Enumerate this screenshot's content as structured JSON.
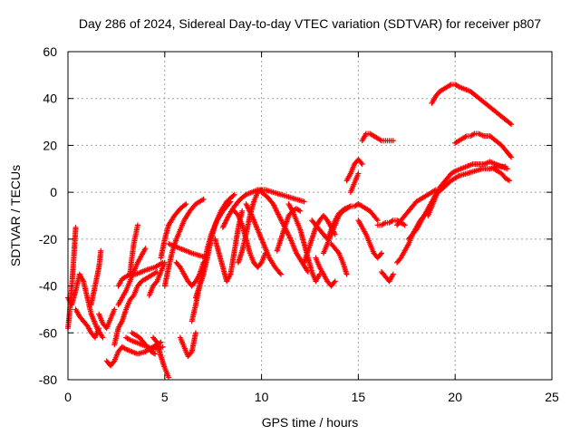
{
  "chart_data": {
    "type": "scatter",
    "title": "Day 286 of 2024, Sidereal Day-to-day VTEC variation (SDTVAR) for receiver p807",
    "xlabel": "GPS time / hours",
    "ylabel": "SDTVAR / TECUs",
    "xlim": [
      0,
      25
    ],
    "ylim": [
      -80,
      60
    ],
    "xticks": [
      "0",
      "5",
      "10",
      "15",
      "20",
      "25"
    ],
    "yticks": [
      "-80",
      "-60",
      "-40",
      "-20",
      "0",
      "20",
      "40",
      "60"
    ],
    "grid": true,
    "marker": "plus",
    "color": "#ff0000",
    "series": [
      {
        "x": [
          0.0,
          0.2,
          0.4,
          0.6,
          0.8,
          1.0,
          1.2,
          1.5,
          1.8
        ],
        "y": [
          -45,
          -48,
          -42,
          -35,
          -38,
          -45,
          -52,
          -58,
          -62
        ]
      },
      {
        "x": [
          0.0,
          0.1,
          0.2,
          0.3,
          0.4
        ],
        "y": [
          -58,
          -50,
          -40,
          -28,
          -15
        ]
      },
      {
        "x": [
          0.4,
          0.6,
          0.8,
          1.0,
          1.2,
          1.4,
          1.6
        ],
        "y": [
          -50,
          -53,
          -55,
          -57,
          -60,
          -62,
          -58
        ]
      },
      {
        "x": [
          1.2,
          1.4,
          1.6,
          1.7
        ],
        "y": [
          -48,
          -40,
          -32,
          -25
        ]
      },
      {
        "x": [
          1.6,
          1.8,
          2.0,
          2.2,
          2.4
        ],
        "y": [
          -52,
          -56,
          -58,
          -54,
          -50
        ]
      },
      {
        "x": [
          2.0,
          2.2,
          2.4,
          2.6,
          2.8,
          3.0,
          3.3,
          3.6,
          4.0,
          4.4,
          4.8
        ],
        "y": [
          -72,
          -74,
          -72,
          -68,
          -66,
          -67,
          -68,
          -69,
          -68,
          -66,
          -64
        ]
      },
      {
        "x": [
          2.4,
          2.6,
          2.8,
          3.0,
          3.2,
          3.4,
          3.6,
          3.8,
          4.2,
          4.6
        ],
        "y": [
          -65,
          -58,
          -55,
          -50,
          -46,
          -44,
          -40,
          -38,
          -36,
          -34
        ]
      },
      {
        "x": [
          2.6,
          2.8,
          3.0,
          3.2,
          3.5,
          3.8,
          4.1,
          4.5,
          4.9
        ],
        "y": [
          -40,
          -37,
          -36,
          -35,
          -35,
          -34,
          -33,
          -32,
          -30
        ]
      },
      {
        "x": [
          2.6,
          2.8,
          3.0,
          3.2,
          3.4,
          3.6,
          3.8,
          4.0
        ],
        "y": [
          -48,
          -45,
          -42,
          -38,
          -34,
          -30,
          -27,
          -24
        ]
      },
      {
        "x": [
          3.0,
          3.2,
          3.5,
          3.8,
          4.1,
          4.5,
          4.9
        ],
        "y": [
          -62,
          -63,
          -64,
          -65,
          -66,
          -67,
          -66
        ]
      },
      {
        "x": [
          3.3,
          3.5,
          3.7,
          3.9,
          4.1,
          4.3,
          4.5
        ],
        "y": [
          -60,
          -61,
          -62,
          -64,
          -66,
          -68,
          -69
        ]
      },
      {
        "x": [
          3.2,
          3.3,
          3.4,
          3.5,
          3.6
        ],
        "y": [
          -35,
          -28,
          -22,
          -18,
          -14
        ]
      },
      {
        "x": [
          4.4,
          4.6,
          4.8,
          5.0,
          5.2
        ],
        "y": [
          -62,
          -64,
          -70,
          -75,
          -79
        ]
      },
      {
        "x": [
          4.2,
          4.4,
          4.6,
          4.8,
          5.0
        ],
        "y": [
          -44,
          -40,
          -38,
          -34,
          -30
        ]
      },
      {
        "x": [
          4.8,
          5.0,
          5.2,
          5.5,
          5.8,
          6.1
        ],
        "y": [
          -28,
          -20,
          -14,
          -10,
          -7,
          -5
        ]
      },
      {
        "x": [
          5.0,
          5.2,
          5.4,
          5.6,
          5.8,
          6.0,
          6.3,
          6.6,
          7.0
        ],
        "y": [
          -40,
          -32,
          -25,
          -20,
          -16,
          -12,
          -8,
          -5,
          -3
        ]
      },
      {
        "x": [
          5.2,
          5.5,
          5.8,
          6.1,
          6.4,
          6.8,
          7.2
        ],
        "y": [
          -22,
          -23,
          -24,
          -25,
          -26,
          -27,
          -28
        ]
      },
      {
        "x": [
          5.6,
          5.8,
          6.0,
          6.2,
          6.4,
          6.6,
          6.8,
          7.0
        ],
        "y": [
          -30,
          -32,
          -35,
          -38,
          -40,
          -38,
          -35,
          -30
        ]
      },
      {
        "x": [
          5.8,
          6.0,
          6.2,
          6.4,
          6.6
        ],
        "y": [
          -62,
          -66,
          -70,
          -68,
          -60
        ]
      },
      {
        "x": [
          6.4,
          6.6,
          6.8,
          7.0,
          7.2,
          7.4,
          7.7,
          8.0,
          8.4
        ],
        "y": [
          -55,
          -48,
          -40,
          -32,
          -24,
          -18,
          -12,
          -8,
          -4
        ]
      },
      {
        "x": [
          6.6,
          6.8,
          7.0,
          7.2,
          7.4,
          7.6,
          7.9,
          8.2,
          8.6
        ],
        "y": [
          -45,
          -40,
          -35,
          -28,
          -20,
          -14,
          -8,
          -4,
          -1
        ]
      },
      {
        "x": [
          7.6,
          7.8,
          8.0,
          8.2,
          8.4,
          8.6,
          8.8,
          9.0
        ],
        "y": [
          -20,
          -26,
          -32,
          -38,
          -35,
          -25,
          -15,
          -8
        ]
      },
      {
        "x": [
          8.0,
          8.3,
          8.6,
          8.9,
          9.2,
          9.5,
          9.8,
          10.2,
          10.6,
          11.0,
          11.4,
          11.8,
          12.2
        ],
        "y": [
          -15,
          -10,
          -6,
          -3,
          -1,
          0,
          1,
          1,
          0,
          -1,
          -2,
          -3,
          -4
        ]
      },
      {
        "x": [
          8.6,
          8.8,
          9.0,
          9.2,
          9.4,
          9.6,
          9.8,
          10.0,
          10.2
        ],
        "y": [
          -8,
          -10,
          -14,
          -20,
          -26,
          -30,
          -32,
          -30,
          -26
        ]
      },
      {
        "x": [
          8.8,
          9.0,
          9.2,
          9.4,
          9.6,
          9.8,
          10.0
        ],
        "y": [
          -30,
          -25,
          -18,
          -10,
          -4,
          0,
          1
        ]
      },
      {
        "x": [
          9.2,
          9.5,
          9.8,
          10.1,
          10.4,
          10.7,
          11.0
        ],
        "y": [
          -5,
          -10,
          -16,
          -22,
          -28,
          -32,
          -35
        ]
      },
      {
        "x": [
          10.0,
          10.3,
          10.6,
          10.9,
          11.2,
          11.5,
          11.8,
          12.1,
          12.4
        ],
        "y": [
          0,
          -2,
          -5,
          -10,
          -15,
          -20,
          -26,
          -30,
          -34
        ]
      },
      {
        "x": [
          10.8,
          11.0,
          11.2,
          11.4,
          11.6,
          11.8,
          12.0
        ],
        "y": [
          -25,
          -20,
          -15,
          -10,
          -8,
          -7,
          -8
        ]
      },
      {
        "x": [
          11.4,
          11.6,
          11.8,
          12.0,
          12.2,
          12.4,
          12.6,
          12.8,
          13.0
        ],
        "y": [
          -5,
          -8,
          -12,
          -16,
          -22,
          -28,
          -34,
          -38,
          -35
        ]
      },
      {
        "x": [
          12.2,
          12.4,
          12.6,
          12.8,
          13.0,
          13.2,
          13.4,
          13.6,
          13.8
        ],
        "y": [
          -30,
          -25,
          -20,
          -15,
          -12,
          -10,
          -12,
          -15,
          -18
        ]
      },
      {
        "x": [
          12.6,
          12.8,
          13.0,
          13.2,
          13.4,
          13.6,
          13.8,
          14.0,
          14.3,
          14.6
        ],
        "y": [
          -12,
          -14,
          -16,
          -18,
          -20,
          -16,
          -12,
          -9,
          -7,
          -6
        ]
      },
      {
        "x": [
          12.8,
          13.0,
          13.2,
          13.4,
          13.6,
          13.8
        ],
        "y": [
          -28,
          -32,
          -35,
          -38,
          -40,
          -38
        ]
      },
      {
        "x": [
          13.2,
          13.4,
          13.6,
          13.8,
          14.0,
          14.2,
          14.4,
          14.6,
          14.8,
          15.0,
          15.2,
          15.4,
          15.6,
          15.8,
          16.0
        ],
        "y": [
          -26,
          -22,
          -18,
          -14,
          -10,
          -8,
          -7,
          -6,
          -6,
          -5,
          -6,
          -7,
          -8,
          -10,
          -12
        ]
      },
      {
        "x": [
          13.6,
          13.8,
          14.0,
          14.2,
          14.4
        ],
        "y": [
          -22,
          -24,
          -26,
          -30,
          -35
        ]
      },
      {
        "x": [
          14.4,
          14.6,
          14.8,
          15.0,
          15.2
        ],
        "y": [
          5,
          8,
          12,
          14,
          12
        ]
      },
      {
        "x": [
          14.6,
          14.8,
          15.0
        ],
        "y": [
          0,
          4,
          8
        ]
      },
      {
        "x": [
          15.2,
          15.4,
          15.6,
          15.8,
          16.0,
          16.2,
          16.4,
          16.6,
          16.8
        ],
        "y": [
          22,
          25,
          25,
          24,
          23,
          22,
          22,
          22,
          22
        ]
      },
      {
        "x": [
          15.0,
          15.2,
          15.4,
          15.6,
          15.8,
          16.0,
          16.2
        ],
        "y": [
          -12,
          -15,
          -18,
          -22,
          -26,
          -28,
          -26
        ]
      },
      {
        "x": [
          16.0,
          16.2,
          16.4,
          16.6,
          16.8,
          17.0,
          17.2,
          17.4
        ],
        "y": [
          -14,
          -14,
          -13,
          -13,
          -12,
          -12,
          -13,
          -14
        ]
      },
      {
        "x": [
          16.2,
          16.4,
          16.6,
          16.8
        ],
        "y": [
          -34,
          -36,
          -38,
          -35
        ]
      },
      {
        "x": [
          17.0,
          17.2,
          17.4,
          17.6,
          17.8,
          18.0,
          18.2,
          18.4,
          18.6,
          18.8,
          19.0
        ],
        "y": [
          -14,
          -12,
          -10,
          -8,
          -6,
          -4,
          -3,
          -2,
          -1,
          0,
          1
        ]
      },
      {
        "x": [
          17.0,
          17.2,
          17.4,
          17.6,
          17.8,
          18.0,
          18.2,
          18.4,
          18.6
        ],
        "y": [
          -30,
          -28,
          -25,
          -22,
          -18,
          -15,
          -12,
          -10,
          -8
        ]
      },
      {
        "x": [
          17.6,
          17.8,
          18.0,
          18.2,
          18.4,
          18.6,
          18.8,
          19.0,
          19.4,
          19.8,
          20.2,
          20.6,
          21.0,
          21.4,
          21.8,
          22.2,
          22.6
        ],
        "y": [
          -20,
          -18,
          -16,
          -13,
          -10,
          -7,
          -4,
          -1,
          2,
          5,
          7,
          8,
          9,
          10,
          10,
          11,
          11
        ]
      },
      {
        "x": [
          18.6,
          18.8,
          19.0,
          19.2,
          19.4,
          19.6,
          19.8,
          20.0,
          20.3,
          20.6,
          20.9,
          21.2,
          21.5,
          21.8,
          22.1,
          22.4,
          22.7
        ],
        "y": [
          -10,
          -6,
          -2,
          2,
          4,
          6,
          8,
          9,
          10,
          11,
          12,
          12,
          12,
          13,
          12,
          11,
          10
        ]
      },
      {
        "x": [
          18.8,
          19.0,
          19.2,
          19.4,
          19.6,
          19.8,
          20.0,
          20.2,
          20.5,
          20.8,
          21.1,
          21.4,
          21.7,
          22.0,
          22.3,
          22.6,
          22.9
        ],
        "y": [
          38,
          41,
          43,
          44,
          45,
          46,
          46,
          45,
          44,
          43,
          41,
          39,
          37,
          35,
          33,
          31,
          29
        ]
      },
      {
        "x": [
          20.0,
          20.2,
          20.4,
          20.6,
          20.8,
          21.0,
          21.2,
          21.5,
          21.8,
          22.1,
          22.4,
          22.7,
          22.9
        ],
        "y": [
          21,
          22,
          23,
          24,
          24,
          25,
          25,
          24,
          24,
          22,
          20,
          17,
          15
        ]
      },
      {
        "x": [
          22.0,
          22.2,
          22.4,
          22.6,
          22.8
        ],
        "y": [
          10,
          9,
          8,
          6,
          5
        ]
      }
    ]
  }
}
